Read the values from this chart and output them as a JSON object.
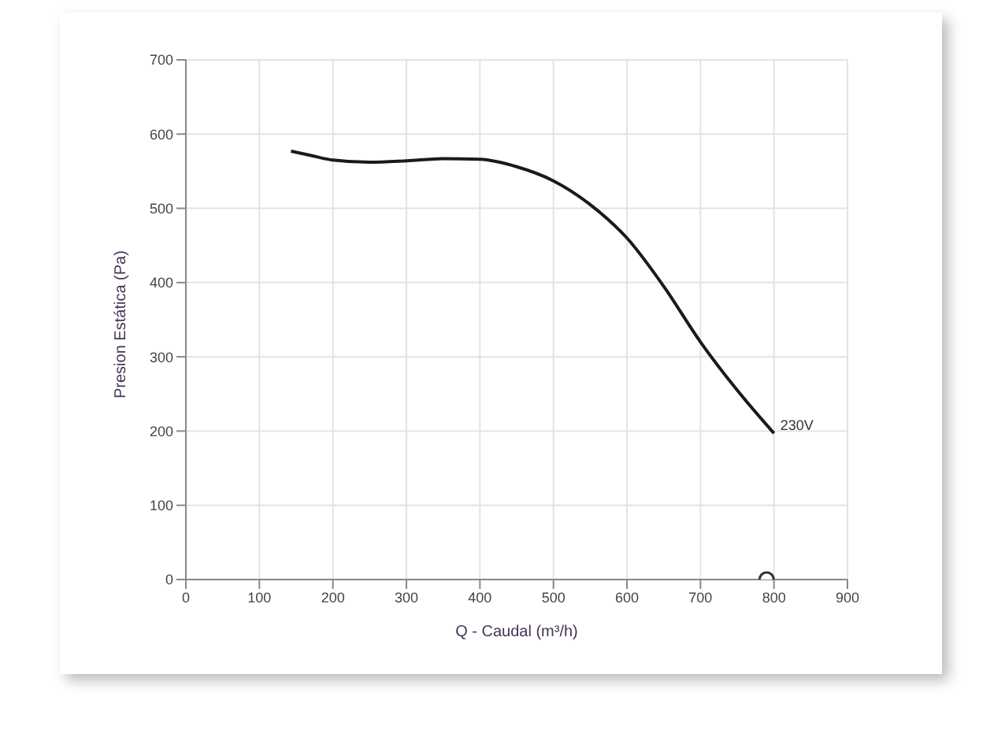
{
  "chart_data": {
    "type": "line",
    "xlabel": "Q - Caudal (m³/h)",
    "ylabel": "Presion Estática (Pa)",
    "xlim": [
      0,
      900
    ],
    "ylim": [
      0,
      700
    ],
    "xticks": [
      0,
      100,
      200,
      300,
      400,
      500,
      600,
      700,
      800,
      900
    ],
    "yticks": [
      0,
      100,
      200,
      300,
      400,
      500,
      600,
      700
    ],
    "grid": true,
    "legend": false,
    "series": [
      {
        "name": "230V",
        "color": "#1a1a1a",
        "marker": "none",
        "x": [
          143,
          175,
          200,
          250,
          300,
          350,
          400,
          450,
          500,
          550,
          600,
          650,
          700,
          750,
          800
        ],
        "values": [
          577,
          570,
          565,
          562,
          564,
          567,
          566,
          556,
          537,
          505,
          460,
          395,
          320,
          255,
          197
        ]
      },
      {
        "type": "scatter",
        "color": "#333333",
        "marker": "circle",
        "x": [
          790
        ],
        "values": [
          0
        ]
      }
    ]
  }
}
